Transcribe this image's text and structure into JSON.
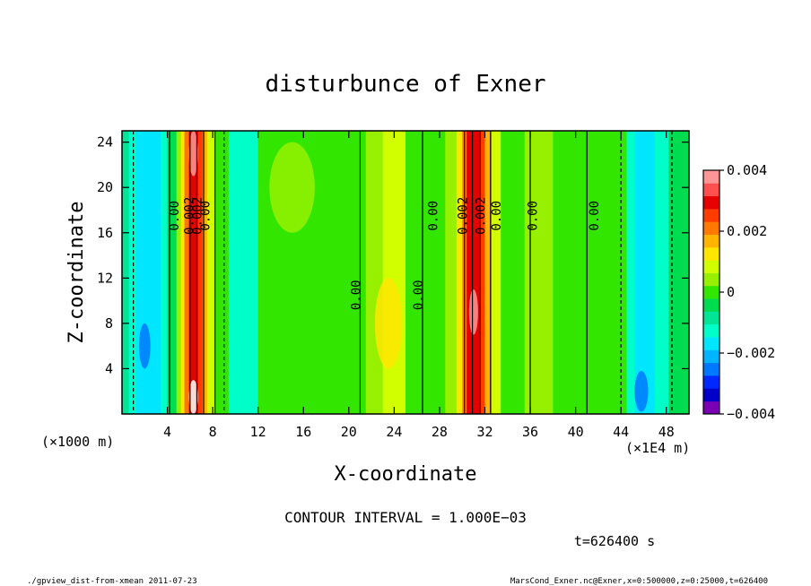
{
  "chart_data": {
    "type": "heatmap",
    "title": "disturbunce of Exner",
    "xlabel": "X-coordinate",
    "ylabel": "Z-coordinate",
    "x_unit_left": "(×1000 m)",
    "x_unit_right": "(×1E4 m)",
    "xlim": [
      0,
      50
    ],
    "ylim": [
      0,
      25
    ],
    "x_ticks": [
      4,
      8,
      12,
      16,
      20,
      24,
      28,
      32,
      36,
      40,
      44,
      48
    ],
    "y_ticks": [
      4,
      8,
      12,
      16,
      20,
      24
    ],
    "colorbar": {
      "range": [
        -0.004,
        0.004
      ],
      "tick_labels": [
        "0.004",
        "0.002",
        "0",
        "−0.002",
        "−0.004"
      ],
      "colors": [
        "#7a00b4",
        "#0000c8",
        "#0028ff",
        "#0078ff",
        "#00b4ff",
        "#00e6ff",
        "#00ffc8",
        "#00e696",
        "#00dc50",
        "#32e600",
        "#96f000",
        "#d2ff00",
        "#ffe600",
        "#ffb400",
        "#ff7800",
        "#ff3c00",
        "#e60000",
        "#ff5050",
        "#ff9696"
      ]
    },
    "contour_labels": [
      "0.00",
      "0.002",
      "0.002",
      "0.00",
      "0.00",
      "0.00",
      "0.00",
      "0.002",
      "0.002",
      "0.00",
      "0.00",
      "0.00"
    ],
    "contour_interval_text": "CONTOUR INTERVAL = 1.000E−03",
    "time_text": "t=626400 s"
  },
  "footer": {
    "left": "./gpview_dist-from-xmean   2011-07-23",
    "right": "MarsCond_Exner.nc@Exner,x=0:500000,z=0:25000,t=626400"
  }
}
